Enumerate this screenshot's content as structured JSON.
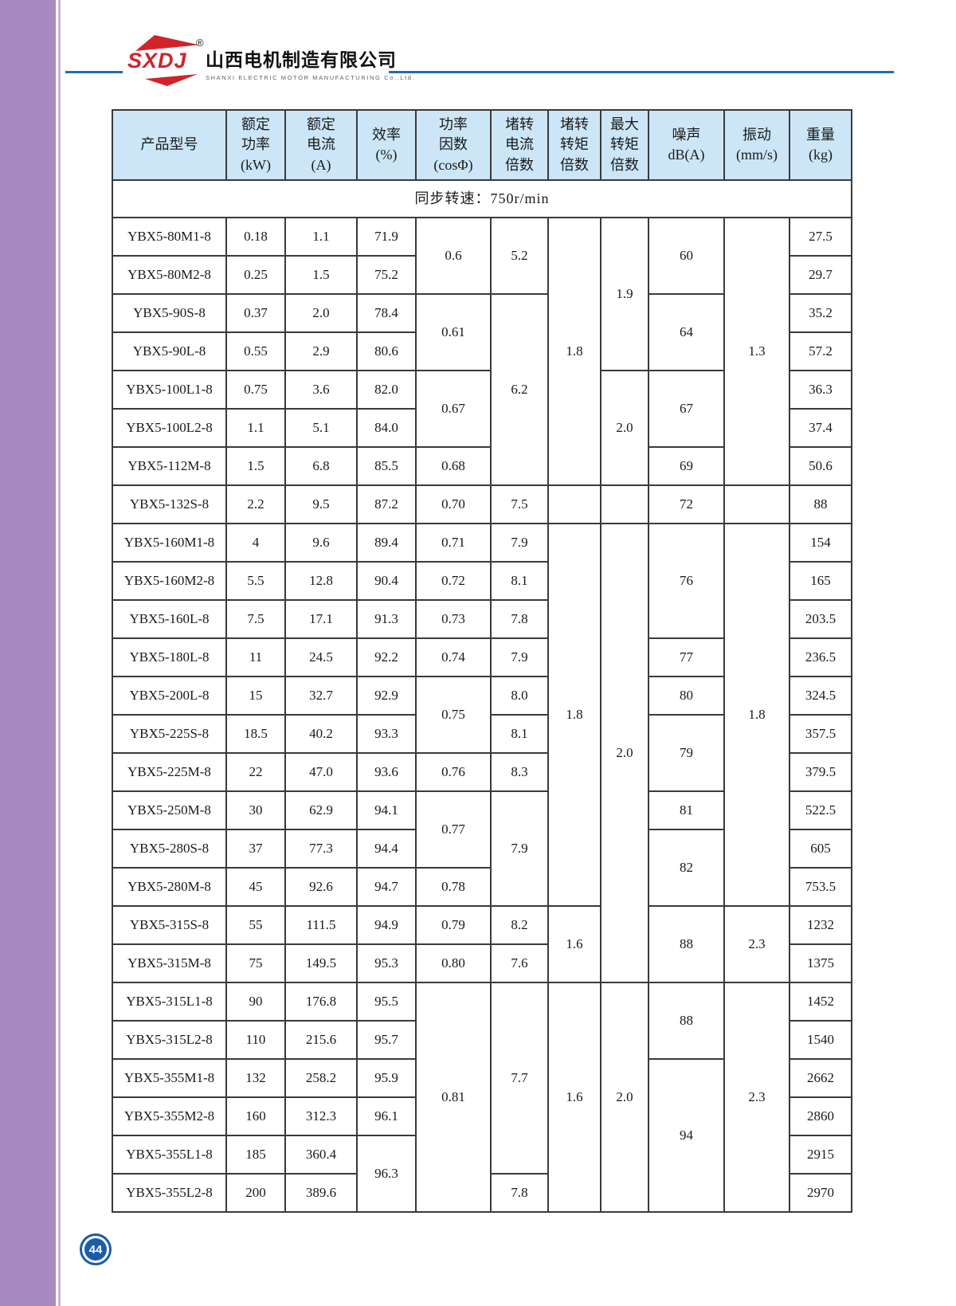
{
  "brand": {
    "logo_text": "SXDJ",
    "registered_mark": "®",
    "company_name_cn": "山西电机制造有限公司",
    "company_name_en": "SHANXI ELECTRIC MOTOR MANUFACTURING Co.,Ltd.",
    "logo_red": "#d2232a",
    "rule_blue": "#1e6db2"
  },
  "page": {
    "number": "44",
    "circle_blue": "#1a5ca8",
    "sidebar_purple": "#a78ac1"
  },
  "table": {
    "header_bg": "#cce6f7",
    "border_color": "#3a3a3a",
    "subtitle": "同步转速：750r/min",
    "columns": [
      {
        "id": "model",
        "lines": [
          "产品型号"
        ]
      },
      {
        "id": "power",
        "lines": [
          "额定",
          "功率",
          "(kW)"
        ]
      },
      {
        "id": "current",
        "lines": [
          "额定",
          "电流",
          "(A)"
        ]
      },
      {
        "id": "eff",
        "lines": [
          "效率",
          "(%)"
        ]
      },
      {
        "id": "cos",
        "lines": [
          "功率",
          "因数",
          "(cosΦ)"
        ]
      },
      {
        "id": "lr-current-ratio",
        "lines": [
          "堵转",
          "电流",
          "倍数"
        ]
      },
      {
        "id": "lr-torque-ratio",
        "lines": [
          "堵转",
          "转矩",
          "倍数"
        ]
      },
      {
        "id": "max-torque-ratio",
        "lines": [
          "最大",
          "转矩",
          "倍数"
        ]
      },
      {
        "id": "noise",
        "lines": [
          "噪声",
          "dB(A)"
        ]
      },
      {
        "id": "vibration",
        "lines": [
          "振动",
          "(mm/s)"
        ]
      },
      {
        "id": "weight",
        "lines": [
          "重量",
          "(kg)"
        ]
      }
    ],
    "rows": [
      [
        {
          "v": "YBX5-80M1-8"
        },
        {
          "v": "0.18"
        },
        {
          "v": "1.1"
        },
        {
          "v": "71.9"
        },
        {
          "v": "0.6",
          "rs": 2
        },
        {
          "v": "5.2",
          "rs": 2
        },
        {
          "v": "1.8",
          "rs": 7
        },
        {
          "v": "1.9",
          "rs": 4
        },
        {
          "v": "60",
          "rs": 2
        },
        {
          "v": "1.3",
          "rs": 7
        },
        {
          "v": "27.5"
        }
      ],
      [
        {
          "v": "YBX5-80M2-8"
        },
        {
          "v": "0.25"
        },
        {
          "v": "1.5"
        },
        {
          "v": "75.2"
        },
        {
          "v": "29.7"
        }
      ],
      [
        {
          "v": "YBX5-90S-8"
        },
        {
          "v": "0.37"
        },
        {
          "v": "2.0"
        },
        {
          "v": "78.4"
        },
        {
          "v": "0.61",
          "rs": 2
        },
        {
          "v": "6.2",
          "rs": 5
        },
        {
          "v": "64",
          "rs": 2
        },
        {
          "v": "35.2"
        }
      ],
      [
        {
          "v": "YBX5-90L-8"
        },
        {
          "v": "0.55"
        },
        {
          "v": "2.9"
        },
        {
          "v": "80.6"
        },
        {
          "v": "57.2"
        }
      ],
      [
        {
          "v": "YBX5-100L1-8"
        },
        {
          "v": "0.75"
        },
        {
          "v": "3.6"
        },
        {
          "v": "82.0"
        },
        {
          "v": "0.67",
          "rs": 2
        },
        {
          "v": "2.0",
          "rs": 3
        },
        {
          "v": "67",
          "rs": 2
        },
        {
          "v": "36.3"
        }
      ],
      [
        {
          "v": "YBX5-100L2-8"
        },
        {
          "v": "1.1"
        },
        {
          "v": "5.1"
        },
        {
          "v": "84.0"
        },
        {
          "v": "37.4"
        }
      ],
      [
        {
          "v": "YBX5-112M-8"
        },
        {
          "v": "1.5"
        },
        {
          "v": "6.8"
        },
        {
          "v": "85.5"
        },
        {
          "v": "0.68"
        },
        {
          "v": "69"
        },
        {
          "v": "50.6"
        }
      ],
      [
        {
          "v": "YBX5-132S-8"
        },
        {
          "v": "2.2"
        },
        {
          "v": "9.5"
        },
        {
          "v": "87.2"
        },
        {
          "v": "0.70"
        },
        {
          "v": "7.5"
        },
        {
          "v": ""
        },
        {
          "v": ""
        },
        {
          "v": "72"
        },
        {
          "v": ""
        },
        {
          "v": "88"
        }
      ],
      [
        {
          "v": "YBX5-160M1-8"
        },
        {
          "v": "4"
        },
        {
          "v": "9.6"
        },
        {
          "v": "89.4"
        },
        {
          "v": "0.71"
        },
        {
          "v": "7.9"
        },
        {
          "v": "1.8",
          "rs": 10
        },
        {
          "v": "2.0",
          "rs": 12
        },
        {
          "v": "76",
          "rs": 3
        },
        {
          "v": "1.8",
          "rs": 10
        },
        {
          "v": "154"
        }
      ],
      [
        {
          "v": "YBX5-160M2-8"
        },
        {
          "v": "5.5"
        },
        {
          "v": "12.8"
        },
        {
          "v": "90.4"
        },
        {
          "v": "0.72"
        },
        {
          "v": "8.1"
        },
        {
          "v": "165"
        }
      ],
      [
        {
          "v": "YBX5-160L-8"
        },
        {
          "v": "7.5"
        },
        {
          "v": "17.1"
        },
        {
          "v": "91.3"
        },
        {
          "v": "0.73"
        },
        {
          "v": "7.8"
        },
        {
          "v": "203.5"
        }
      ],
      [
        {
          "v": "YBX5-180L-8"
        },
        {
          "v": "11"
        },
        {
          "v": "24.5"
        },
        {
          "v": "92.2"
        },
        {
          "v": "0.74"
        },
        {
          "v": "7.9"
        },
        {
          "v": "77"
        },
        {
          "v": "236.5"
        }
      ],
      [
        {
          "v": "YBX5-200L-8"
        },
        {
          "v": "15"
        },
        {
          "v": "32.7"
        },
        {
          "v": "92.9"
        },
        {
          "v": "0.75",
          "rs": 2
        },
        {
          "v": "8.0"
        },
        {
          "v": "80"
        },
        {
          "v": "324.5"
        }
      ],
      [
        {
          "v": "YBX5-225S-8"
        },
        {
          "v": "18.5"
        },
        {
          "v": "40.2"
        },
        {
          "v": "93.3"
        },
        {
          "v": "8.1"
        },
        {
          "v": "79",
          "rs": 2
        },
        {
          "v": "357.5"
        }
      ],
      [
        {
          "v": "YBX5-225M-8"
        },
        {
          "v": "22"
        },
        {
          "v": "47.0"
        },
        {
          "v": "93.6"
        },
        {
          "v": "0.76"
        },
        {
          "v": "8.3"
        },
        {
          "v": "379.5"
        }
      ],
      [
        {
          "v": "YBX5-250M-8"
        },
        {
          "v": "30"
        },
        {
          "v": "62.9"
        },
        {
          "v": "94.1"
        },
        {
          "v": "0.77",
          "rs": 2
        },
        {
          "v": "7.9",
          "rs": 3
        },
        {
          "v": "81"
        },
        {
          "v": "522.5"
        }
      ],
      [
        {
          "v": "YBX5-280S-8"
        },
        {
          "v": "37"
        },
        {
          "v": "77.3"
        },
        {
          "v": "94.4"
        },
        {
          "v": "82",
          "rs": 2
        },
        {
          "v": "605"
        }
      ],
      [
        {
          "v": "YBX5-280M-8"
        },
        {
          "v": "45"
        },
        {
          "v": "92.6"
        },
        {
          "v": "94.7"
        },
        {
          "v": "0.78"
        },
        {
          "v": "753.5"
        }
      ],
      [
        {
          "v": "YBX5-315S-8"
        },
        {
          "v": "55"
        },
        {
          "v": "111.5"
        },
        {
          "v": "94.9"
        },
        {
          "v": "0.79"
        },
        {
          "v": "8.2"
        },
        {
          "v": "1.6",
          "rs": 2
        },
        {
          "v": "88",
          "rs": 2
        },
        {
          "v": "2.3",
          "rs": 2
        },
        {
          "v": "1232"
        }
      ],
      [
        {
          "v": "YBX5-315M-8"
        },
        {
          "v": "75"
        },
        {
          "v": "149.5"
        },
        {
          "v": "95.3"
        },
        {
          "v": "0.80"
        },
        {
          "v": "7.6"
        },
        {
          "v": "1375"
        }
      ],
      [
        {
          "v": "YBX5-315L1-8"
        },
        {
          "v": "90"
        },
        {
          "v": "176.8"
        },
        {
          "v": "95.5"
        },
        {
          "v": "0.81",
          "rs": 6
        },
        {
          "v": "7.7",
          "rs": 5
        },
        {
          "v": "1.6",
          "rs": 6
        },
        {
          "v": "2.0",
          "rs": 6
        },
        {
          "v": "88",
          "rs": 2
        },
        {
          "v": "2.3",
          "rs": 6
        },
        {
          "v": "1452"
        }
      ],
      [
        {
          "v": "YBX5-315L2-8"
        },
        {
          "v": "110"
        },
        {
          "v": "215.6"
        },
        {
          "v": "95.7"
        },
        {
          "v": "1540"
        }
      ],
      [
        {
          "v": "YBX5-355M1-8"
        },
        {
          "v": "132"
        },
        {
          "v": "258.2"
        },
        {
          "v": "95.9"
        },
        {
          "v": "94",
          "rs": 4
        },
        {
          "v": "2662"
        }
      ],
      [
        {
          "v": "YBX5-355M2-8"
        },
        {
          "v": "160"
        },
        {
          "v": "312.3"
        },
        {
          "v": "96.1"
        },
        {
          "v": "2860"
        }
      ],
      [
        {
          "v": "YBX5-355L1-8"
        },
        {
          "v": "185"
        },
        {
          "v": "360.4"
        },
        {
          "v": "96.3",
          "rs": 2
        },
        {
          "v": "2915"
        }
      ],
      [
        {
          "v": "YBX5-355L2-8"
        },
        {
          "v": "200"
        },
        {
          "v": "389.6"
        },
        {
          "v": "7.8"
        },
        {
          "v": "2970"
        }
      ]
    ]
  }
}
